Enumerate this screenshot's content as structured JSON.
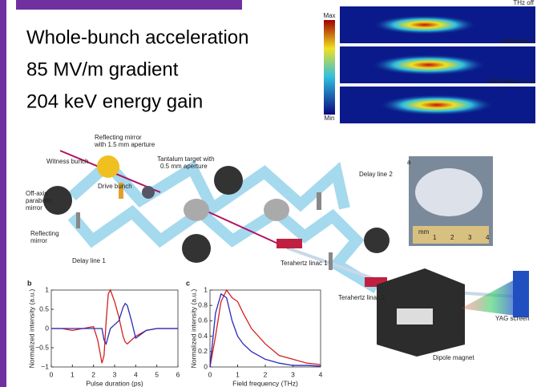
{
  "slide": {
    "lines": [
      "Whole-bunch acceleration",
      "85 MV/m gradient",
      "204 keV energy gain"
    ]
  },
  "beam_images": {
    "colorbar": [
      "Max",
      "Min"
    ],
    "labels": [
      "THz off",
      "With linac I",
      "With linacs I + II"
    ]
  },
  "diagram": {
    "labels": [
      "Reflecting mirror",
      "with 1.5 mm aperture",
      "Witness bunch",
      "Tantalum target with",
      "0.5 mm aperture",
      "Drive bunch",
      "Off-axis",
      "parabolic",
      "mirror",
      "Reflecting",
      "mirror",
      "Delay line 1",
      "Delay line 2",
      "Terahertz linac 1",
      "Terahertz linac 2",
      "YAG screen",
      "Dipole magnet",
      "a"
    ],
    "ruler_labels": [
      "mm",
      "1",
      "2",
      "3",
      "4"
    ]
  },
  "chart_data": [
    {
      "type": "line",
      "title": "b",
      "xlabel": "Pulse duration (ps)",
      "ylabel": "Normalized intensity (a.u.)",
      "x": [
        0,
        0.5,
        1,
        1.5,
        2,
        2.2,
        2.4,
        2.5,
        2.6,
        2.7,
        2.8,
        3,
        3.2,
        3.4,
        3.5,
        3.6,
        3.8,
        4,
        4.5,
        5,
        5.5,
        6
      ],
      "series": [
        {
          "color": "#d42020",
          "values": [
            0,
            0,
            -0.05,
            0,
            0.05,
            -0.3,
            -0.9,
            -0.7,
            0.2,
            0.9,
            1,
            0.7,
            0.3,
            -0.2,
            -0.35,
            -0.4,
            -0.3,
            -0.2,
            -0.05,
            0,
            0,
            0
          ]
        },
        {
          "color": "#2a2ab8",
          "values": [
            0,
            0,
            0,
            0,
            0,
            0,
            0,
            -0.3,
            -0.4,
            -0.2,
            0,
            0.1,
            0.2,
            0.55,
            0.65,
            0.6,
            0.2,
            -0.25,
            -0.05,
            0,
            0,
            0
          ]
        }
      ],
      "xlim": [
        0,
        6
      ],
      "xticks": [
        0,
        1,
        2,
        3,
        4,
        5,
        6
      ],
      "ylim": [
        -1,
        1
      ],
      "yticks": [
        {
          "value": -1,
          "label": "−1"
        },
        {
          "value": -0.5,
          "label": "−0.5"
        },
        0,
        0.5,
        1
      ]
    },
    {
      "type": "line",
      "title": "c",
      "xlabel": "Field frequency (THz)",
      "ylabel": "Normalized intensity (a.u.)",
      "x": [
        0,
        0.2,
        0.4,
        0.6,
        0.8,
        1,
        1.2,
        1.5,
        2,
        2.5,
        3,
        3.5,
        4
      ],
      "series": [
        {
          "color": "#d42020",
          "values": [
            0,
            0.4,
            0.85,
            1,
            0.9,
            0.85,
            0.7,
            0.5,
            0.3,
            0.15,
            0.1,
            0.05,
            0.03
          ]
        },
        {
          "color": "#2a2ab8",
          "values": [
            0,
            0.7,
            0.95,
            0.9,
            0.6,
            0.4,
            0.3,
            0.2,
            0.1,
            0.05,
            0.02,
            0.02,
            0.01
          ]
        }
      ],
      "xlim": [
        0,
        4
      ],
      "xticks": [
        0,
        1,
        2,
        3,
        4
      ],
      "ylim": [
        0,
        1
      ],
      "yticks": [
        0,
        0.2,
        0.4,
        0.6,
        0.8,
        1
      ]
    }
  ]
}
